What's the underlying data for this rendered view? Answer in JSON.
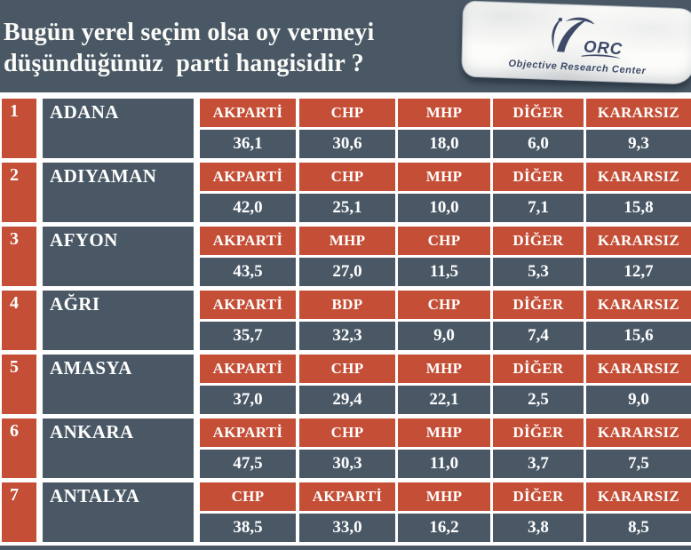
{
  "header": {
    "title_line1": "Bugün yerel seçim olsa oy vermeyi",
    "title_line2": "düşündüğünüz  parti hangisidir ?"
  },
  "logo": {
    "abbr": "ORC",
    "name": "Objective Research Center"
  },
  "colors": {
    "red": "#C44E36",
    "slate": "#4A5866",
    "logo_navy": "#3D4A68"
  },
  "chart_data": {
    "type": "table",
    "title": "Bugün yerel seçim olsa oy vermeyi düşündüğünüz parti hangisidir ?",
    "value_unit_hint": "oy oranı (virgüllü ondalık)",
    "rows": [
      {
        "rank": "1",
        "city": "ADANA",
        "parties": [
          "AKPARTİ",
          "CHP",
          "MHP",
          "DİĞER",
          "KARARSIZ"
        ],
        "values": [
          "36,1",
          "30,6",
          "18,0",
          "6,0",
          "9,3"
        ]
      },
      {
        "rank": "2",
        "city": "ADIYAMAN",
        "parties": [
          "AKPARTİ",
          "CHP",
          "MHP",
          "DİĞER",
          "KARARSIZ"
        ],
        "values": [
          "42,0",
          "25,1",
          "10,0",
          "7,1",
          "15,8"
        ]
      },
      {
        "rank": "3",
        "city": "AFYON",
        "parties": [
          "AKPARTİ",
          "MHP",
          "CHP",
          "DİĞER",
          "KARARSIZ"
        ],
        "values": [
          "43,5",
          "27,0",
          "11,5",
          "5,3",
          "12,7"
        ]
      },
      {
        "rank": "4",
        "city": "AĞRI",
        "parties": [
          "AKPARTİ",
          "BDP",
          "CHP",
          "DİĞER",
          "KARARSIZ"
        ],
        "values": [
          "35,7",
          "32,3",
          "9,0",
          "7,4",
          "15,6"
        ]
      },
      {
        "rank": "5",
        "city": "AMASYA",
        "parties": [
          "AKPARTİ",
          "CHP",
          "MHP",
          "DİĞER",
          "KARARSIZ"
        ],
        "values": [
          "37,0",
          "29,4",
          "22,1",
          "2,5",
          "9,0"
        ]
      },
      {
        "rank": "6",
        "city": "ANKARA",
        "parties": [
          "AKPARTİ",
          "CHP",
          "MHP",
          "DİĞER",
          "KARARSIZ"
        ],
        "values": [
          "47,5",
          "30,3",
          "11,0",
          "3,7",
          "7,5"
        ]
      },
      {
        "rank": "7",
        "city": "ANTALYA",
        "parties": [
          "CHP",
          "AKPARTİ",
          "MHP",
          "DİĞER",
          "KARARSIZ"
        ],
        "values": [
          "38,5",
          "33,0",
          "16,2",
          "3,8",
          "8,5"
        ]
      }
    ]
  }
}
